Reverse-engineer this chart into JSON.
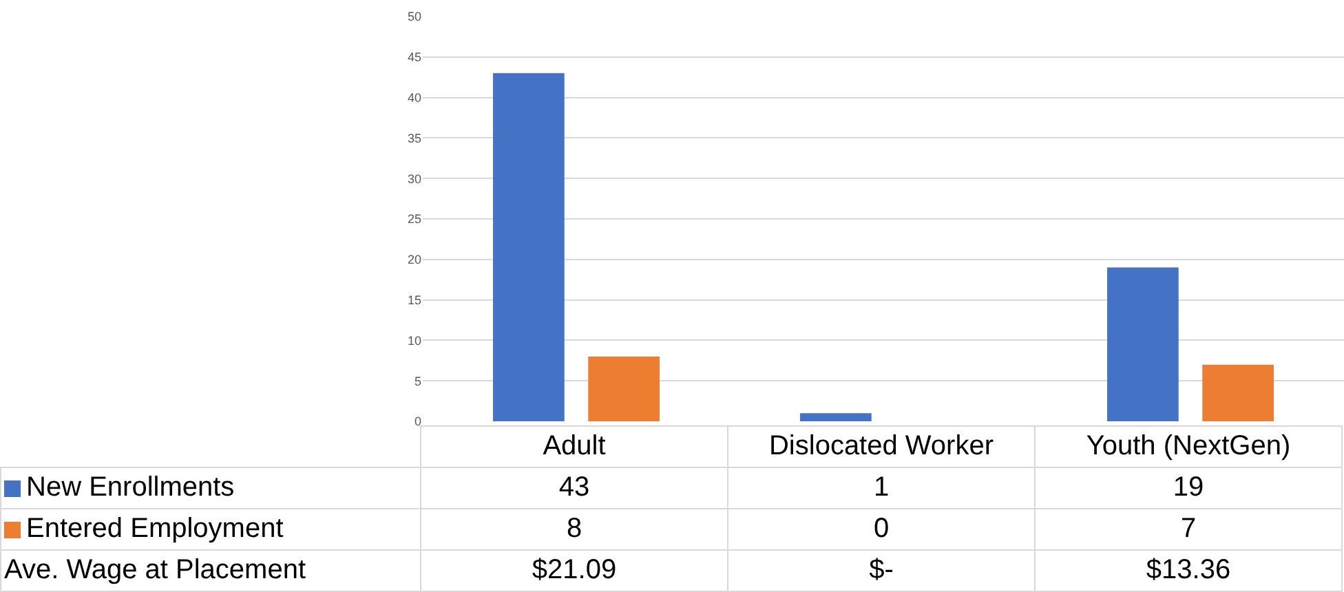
{
  "chart_data": {
    "type": "bar",
    "categories": [
      "Adult",
      "Dislocated Worker",
      "Youth (NextGen)"
    ],
    "series": [
      {
        "name": "New Enrollments",
        "color": "#4472c4",
        "values": [
          43,
          1,
          19
        ]
      },
      {
        "name": "Entered Employment",
        "color": "#ed7d31",
        "values": [
          8,
          0,
          7
        ]
      }
    ],
    "ylim": [
      0,
      50
    ],
    "yticks": [
      0,
      5,
      10,
      15,
      20,
      25,
      30,
      35,
      40,
      45,
      50
    ],
    "grid": "y",
    "legend": "bottom",
    "data_labels": true,
    "annotations": [
      "Ave. Wage at Placement",
      "$21.09",
      "$-",
      "$13.36"
    ]
  }
}
